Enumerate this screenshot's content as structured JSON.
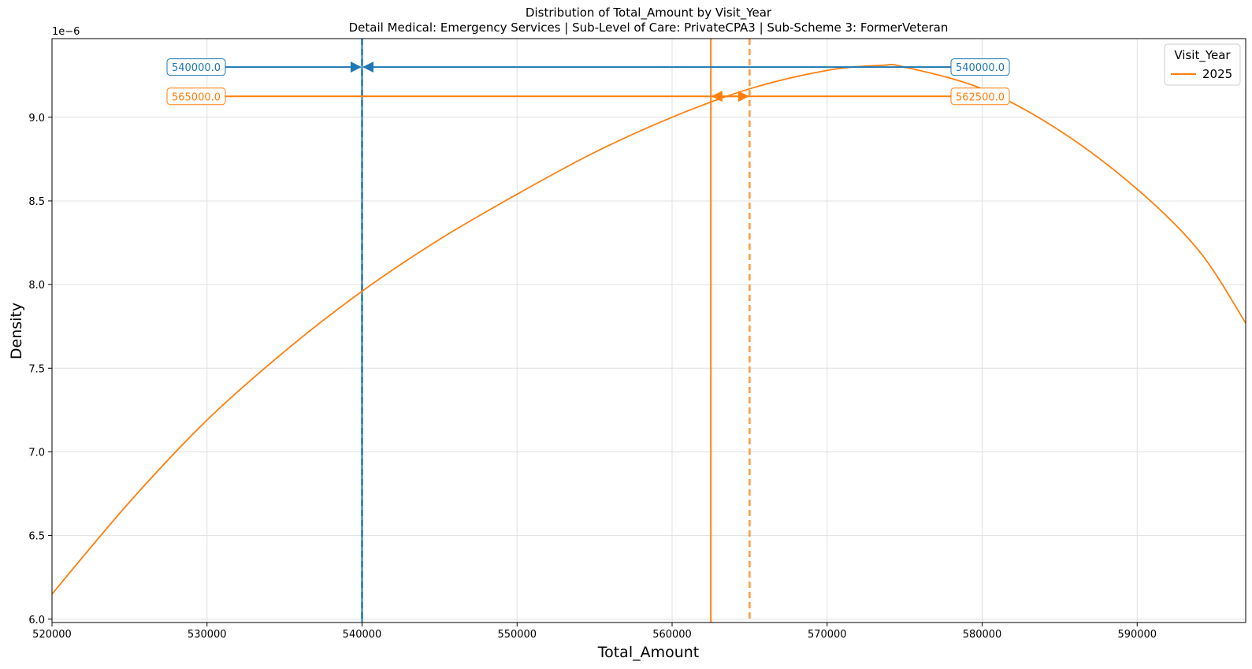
{
  "chart_data": {
    "type": "line",
    "title": "Distribution of Total_Amount by Visit_Year",
    "subtitle": "Detail Medical: Emergency Services | Sub-Level of Care: PrivateCPA3 | Sub-Scheme 3: FormerVeteran",
    "xlabel": "Total_Amount",
    "ylabel": "Density",
    "y_scale_label": "1e−6",
    "xlim": [
      520000,
      597000
    ],
    "ylim": [
      5.98,
      9.47
    ],
    "x_ticks": [
      520000,
      530000,
      540000,
      550000,
      560000,
      570000,
      580000,
      590000
    ],
    "y_ticks": [
      6.0,
      6.5,
      7.0,
      7.5,
      8.0,
      8.5,
      9.0
    ],
    "grid": true,
    "legend": {
      "title": "Visit_Year",
      "position": "top-right",
      "entries": [
        "2025"
      ]
    },
    "series": [
      {
        "name": "2025",
        "color": "#ff7f0e",
        "x": [
          520000,
          525000,
          530000,
          535000,
          540000,
          545000,
          550000,
          555000,
          560000,
          565000,
          570000,
          573500,
          575000,
          580000,
          585000,
          590000,
          594000,
          597000
        ],
        "y": [
          6.15,
          6.7,
          7.19,
          7.6,
          7.96,
          8.27,
          8.54,
          8.79,
          9.0,
          9.17,
          9.28,
          9.31,
          9.3,
          9.17,
          8.92,
          8.57,
          8.2,
          7.77
        ]
      }
    ],
    "reference_lines": [
      {
        "x": 540000,
        "style": "solid",
        "color": "#1f77b4"
      },
      {
        "x": 540000,
        "style": "dashed",
        "color": "#1f77b4"
      },
      {
        "x": 562500,
        "style": "solid",
        "color": "#ff7f0e"
      },
      {
        "x": 565000,
        "style": "dashed",
        "color": "#ff7f0e"
      }
    ],
    "annotations": [
      {
        "text": "540000.0",
        "color": "#1f77b4",
        "side": "left",
        "y": 9.3,
        "target_x": 540000
      },
      {
        "text": "540000.0",
        "color": "#1f77b4",
        "side": "right",
        "y": 9.3,
        "target_x": 540000
      },
      {
        "text": "565000.0",
        "color": "#ff7f0e",
        "side": "left",
        "y": 9.125,
        "target_x": 565000
      },
      {
        "text": "562500.0",
        "color": "#ff7f0e",
        "side": "right",
        "y": 9.125,
        "target_x": 562500
      }
    ]
  }
}
